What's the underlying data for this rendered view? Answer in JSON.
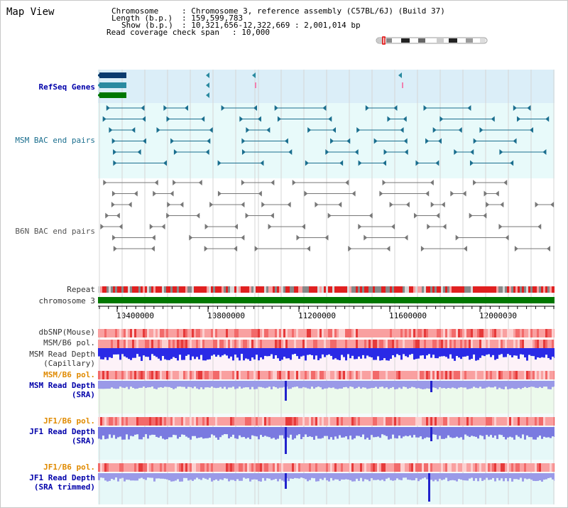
{
  "title": "Map View",
  "info": {
    "chromosome_key": "Chromosome",
    "chromosome_val": ": Chromosome 3, reference assembly (C57BL/6J) (Build 37)",
    "length_key": "Length (b.p.)",
    "length_val": ": 159,599,783",
    "show_key": "Show (b.p.)",
    "show_val": ": 10,321,656-12,322,669 : 2,001,014 bp",
    "span_key": "Read coverage check span",
    "span_val": ": 10,000"
  },
  "tracks": {
    "refseq": "RefSeq Genes",
    "msm_bac": "MSM BAC end pairs",
    "b6n_bac": "B6N BAC end pairs",
    "repeat": "Repeat",
    "chromosome": "chromosome 3",
    "dbsnp": "dbSNP(Mouse)",
    "msm_b6_pol_1": "MSM/B6 pol.",
    "msm_read_depth_cap": "MSM Read Depth\n(Capillary)",
    "msm_b6_pol_2": "MSM/B6 pol.",
    "msm_read_depth_sra": "MSM Read Depth\n(SRA)",
    "jf1_b6_pol_1": "JF1/B6 pol.",
    "jf1_read_depth_sra": "JF1 Read Depth\n(SRA)",
    "jf1_b6_pol_2": "JF1/B6 pol.",
    "jf1_read_depth_trim": "JF1 Read Depth\n(SRA trimmed)"
  },
  "axis_ticks": [
    "10400000",
    "10800000",
    "11200000",
    "11600000",
    "12000000"
  ],
  "colors": {
    "refseq_bg": "#dbeef8",
    "bac_bg": "#e8fafa",
    "msm_bac": "#1a6e8e",
    "b6n_bac": "#777777",
    "chromosome": "#007700",
    "depth": "#3333cc",
    "label_blue": "#0000aa",
    "label_orange": "#e08a00"
  }
}
